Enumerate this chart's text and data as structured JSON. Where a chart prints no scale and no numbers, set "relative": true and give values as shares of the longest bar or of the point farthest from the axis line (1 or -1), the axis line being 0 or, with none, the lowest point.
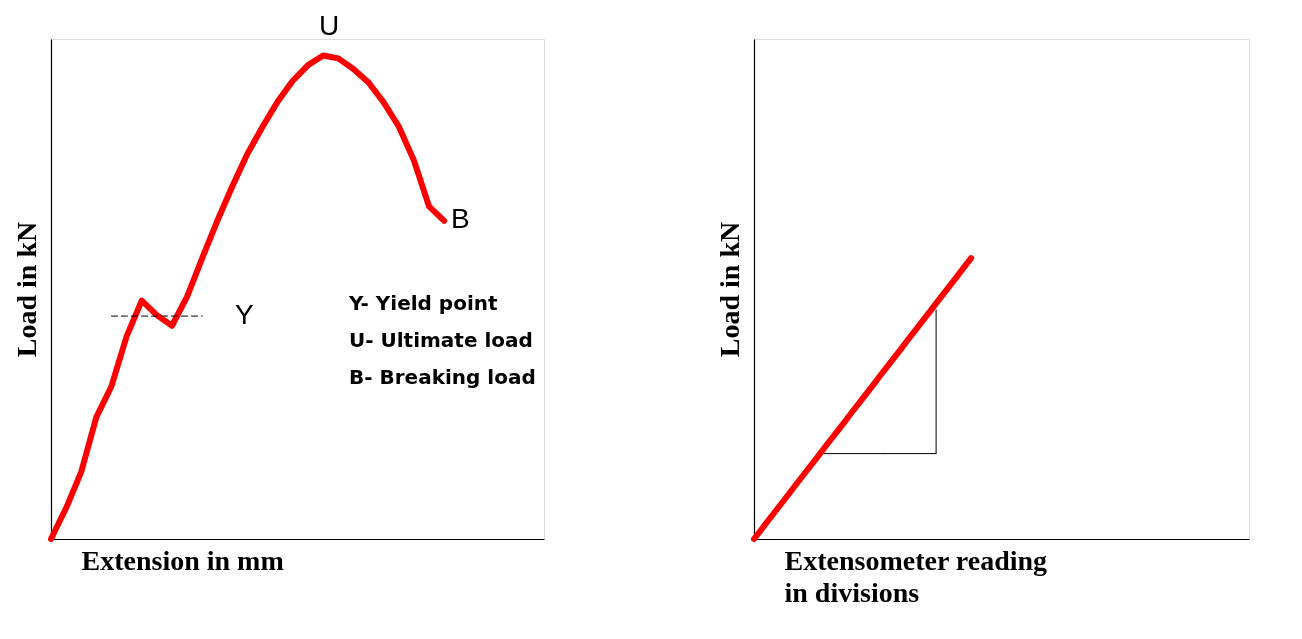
{
  "chart_data": [
    {
      "type": "line",
      "relative": true,
      "ylabel": "Load in kN",
      "xlabel": "Extension in mm",
      "categories": [
        null,
        null,
        null,
        null,
        null,
        null,
        null,
        null,
        null,
        null,
        null,
        null,
        null,
        null,
        null,
        null,
        null,
        null,
        null,
        null,
        null,
        null,
        null,
        null,
        null,
        null,
        null
      ],
      "series": [
        {
          "color": "#ff0000",
          "values": [
            0,
            0.064,
            0.139,
            0.252,
            0.316,
            0.419,
            0.493,
            0.463,
            0.441,
            0.501,
            0.581,
            0.658,
            0.73,
            0.797,
            0.853,
            0.905,
            0.948,
            0.98,
            1,
            0.994,
            0.972,
            0.944,
            0.903,
            0.853,
            0.783,
            0.688,
            0.658
          ]
        },
        {
          "color": "#000000",
          "line_style": "dashed",
          "values": [
            null,
            null,
            null,
            null,
            0.461,
            0.461,
            0.461,
            0.461,
            0.461,
            0.461,
            0.461,
            null,
            null,
            null,
            null,
            null,
            null,
            null,
            null,
            null,
            null,
            null,
            null,
            null,
            null,
            null,
            null
          ]
        }
      ],
      "annotations": [
        "Y",
        "U",
        "B",
        "Y- Yield point",
        "U- Ultimate load",
        "B- Breaking load"
      ]
    },
    {
      "type": "line",
      "relative": true,
      "ylabel": "Load in kN",
      "xlabel": "Extensometer reading\nin divisions",
      "categories": [
        null,
        null,
        null,
        null,
        null,
        null,
        null,
        null,
        null,
        null,
        null,
        null,
        null,
        null,
        null,
        null,
        null,
        null,
        null,
        null,
        null,
        null,
        null,
        null,
        null,
        null,
        null,
        null,
        null,
        null,
        null,
        null
      ],
      "series": [
        {
          "color": "#ff0000",
          "values": [
            0,
            0.032,
            0.065,
            0.097,
            0.129,
            0.161,
            0.194,
            0.226,
            0.258,
            0.29,
            0.323,
            0.355,
            0.387,
            0.419,
            0.452,
            0.484,
            0.516,
            0.548,
            0.581,
            0.613,
            0.645,
            0.677,
            0.71,
            0.742,
            0.774,
            0.806,
            0.839,
            0.871,
            0.903,
            0.935,
            0.968,
            1
          ]
        },
        {
          "color": "#000000",
          "values": [
            null,
            null,
            null,
            null,
            null,
            null,
            null,
            null,
            null,
            null,
            0.304,
            0.304,
            0.304,
            0.304,
            0.304,
            0.304,
            0.304,
            0.304,
            0.304,
            0.304,
            0.304,
            0.304,
            0.304,
            0.304,
            0.304,
            0.304,
            0.304,
            null,
            null,
            null,
            null,
            null
          ]
        }
      ]
    }
  ]
}
